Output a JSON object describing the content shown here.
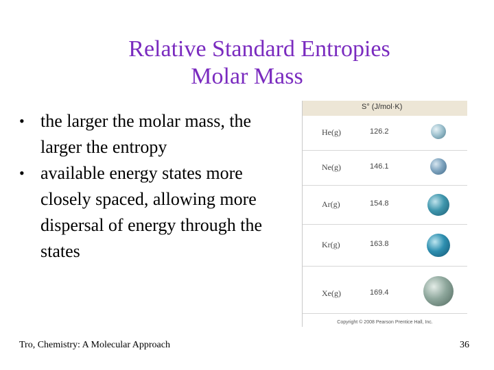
{
  "title": {
    "line1": "Relative Standard Entropies",
    "line2": "Molar Mass"
  },
  "bullets": [
    "the larger the molar mass, the larger the entropy",
    "available energy states more closely spaced, allowing more dispersal of energy through the states"
  ],
  "table": {
    "header": "S° (J/mol·K)",
    "rows": [
      {
        "name": "He(g)",
        "value": "126.2"
      },
      {
        "name": "Ne(g)",
        "value": "146.1"
      },
      {
        "name": "Ar(g)",
        "value": "154.8"
      },
      {
        "name": "Kr(g)",
        "value": "163.8"
      },
      {
        "name": "Xe(g)",
        "value": "169.4"
      }
    ],
    "copyright": "Copyright © 2008 Pearson Prentice Hall, Inc."
  },
  "footer": {
    "source": "Tro, Chemistry: A Molecular Approach",
    "page_number": "36"
  }
}
